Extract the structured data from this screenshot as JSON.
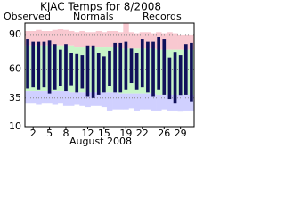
{
  "chart_data": {
    "type": "temps",
    "title": "KJAC Temps for 8/2008",
    "x_label": "August 2008",
    "categories": [
      null,
      2,
      null,
      null,
      5,
      null,
      null,
      8,
      null,
      null,
      null,
      12,
      null,
      null,
      15,
      null,
      null,
      null,
      19,
      null,
      null,
      22,
      null,
      null,
      null,
      26,
      null,
      null,
      29,
      null,
      null
    ],
    "series": [
      {
        "name": "Observed",
        "color": "#10105a",
        "highs": [
          86,
          84,
          84,
          84,
          85,
          82,
          77,
          82,
          74,
          73,
          72,
          80,
          80,
          74,
          71,
          76,
          83,
          83,
          84,
          78,
          74,
          86,
          84,
          84,
          88,
          86,
          70,
          75,
          72,
          82,
          83
        ],
        "lows": [
          43,
          44,
          42,
          44,
          39,
          42,
          45,
          41,
          46,
          40,
          43,
          36,
          35,
          38,
          40,
          45,
          40,
          40,
          42,
          48,
          42,
          44,
          40,
          36,
          42,
          38,
          34,
          30,
          37,
          38,
          32
        ]
      },
      {
        "name": "Normals",
        "color": "#008000",
        "band_color": "#c8f5c8",
        "highs": [
          80,
          80,
          80,
          80,
          80,
          80,
          80,
          80,
          80,
          79,
          79,
          79,
          79,
          79,
          79,
          79,
          79,
          78,
          78,
          78,
          78,
          78,
          78,
          78,
          77,
          77,
          77,
          77,
          77,
          77,
          77
        ],
        "lows": [
          41,
          41,
          41,
          41,
          41,
          41,
          41,
          41,
          40,
          40,
          40,
          40,
          40,
          40,
          40,
          40,
          40,
          39,
          39,
          39,
          39,
          39,
          39,
          39,
          38,
          38,
          38,
          38,
          38,
          38,
          38
        ]
      },
      {
        "name": "Records",
        "color": "#b0a0f0",
        "band_color": "#f8c8d0",
        "low_band_color": "#d0d0ff",
        "highs": [
          93,
          93,
          94,
          93,
          93,
          94,
          95,
          94,
          93,
          92,
          93,
          92,
          92,
          93,
          92,
          93,
          93,
          92,
          100,
          92,
          91,
          92,
          92,
          91,
          92,
          91,
          92,
          91,
          90,
          90,
          90
        ],
        "lows": [
          30,
          30,
          29,
          30,
          30,
          29,
          30,
          28,
          28,
          29,
          28,
          27,
          28,
          28,
          27,
          24,
          25,
          25,
          25,
          26,
          24,
          25,
          25,
          24,
          24,
          25,
          24,
          24,
          23,
          24,
          24
        ]
      }
    ],
    "ylim": [
      10,
      100
    ],
    "yticks": [
      10,
      35,
      60,
      90
    ],
    "grid": true
  }
}
